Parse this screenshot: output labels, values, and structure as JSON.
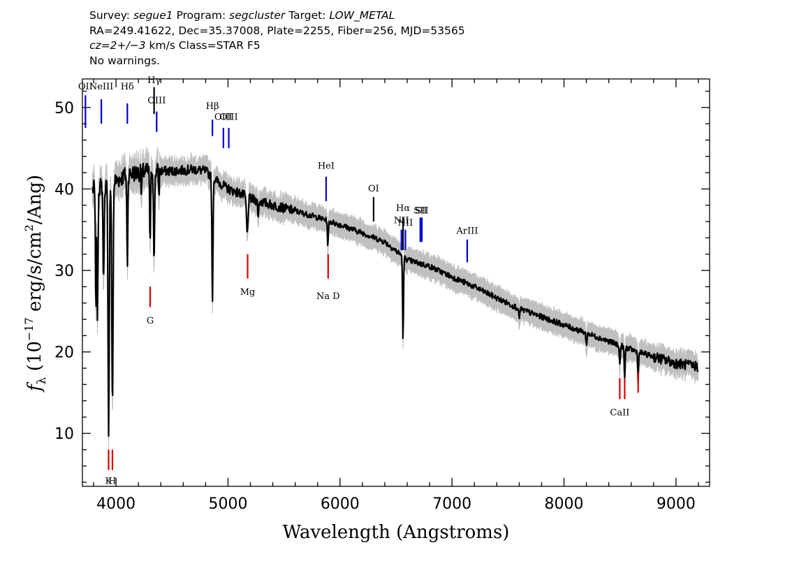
{
  "header": {
    "survey_label": "Survey:",
    "survey": "segue1",
    "program_label": "Program:",
    "program": "segcluster",
    "target_label": "Target:",
    "target": "LOW_METAL",
    "coords": "RA=249.41622, Dec=35.37008, Plate=2255, Fiber=256, MJD=53565",
    "cz": "cz=2+/−3",
    "cz_units_class": "km/s Class=STAR F5",
    "warnings": "No warnings."
  },
  "chart_data": {
    "type": "line",
    "xlabel": "Wavelength (Angstroms)",
    "ylabel_prefix": "f",
    "ylabel_sub": "λ",
    "ylabel_main": " (10",
    "ylabel_exp": "−17",
    "ylabel_units": " erg/s/cm",
    "ylabel_sq": "2",
    "ylabel_end": "/Ang)",
    "xlim": [
      3700,
      9300
    ],
    "ylim": [
      3.5,
      53.5
    ],
    "xticks": [
      4000,
      5000,
      6000,
      7000,
      8000,
      9000
    ],
    "yticks": [
      10,
      20,
      30,
      40,
      50
    ],
    "colors": {
      "spectrum": "#000000",
      "error_band": "#c0c0c0",
      "emission": "#0000cc",
      "absorption": "#dd0000",
      "other": "#000000"
    },
    "continuum": [
      [
        3800,
        40.0
      ],
      [
        3900,
        40.5
      ],
      [
        4000,
        41.0
      ],
      [
        4100,
        41.8
      ],
      [
        4200,
        42.0
      ],
      [
        4300,
        42.2
      ],
      [
        4400,
        42.2
      ],
      [
        4500,
        42.2
      ],
      [
        4600,
        42.3
      ],
      [
        4700,
        42.4
      ],
      [
        4800,
        42.2
      ],
      [
        4900,
        41.0
      ],
      [
        5000,
        40.0
      ],
      [
        5100,
        39.5
      ],
      [
        5200,
        38.8
      ],
      [
        5400,
        38.0
      ],
      [
        5600,
        37.3
      ],
      [
        5800,
        36.5
      ],
      [
        6000,
        35.6
      ],
      [
        6200,
        34.6
      ],
      [
        6400,
        33.5
      ],
      [
        6600,
        31.3
      ],
      [
        6800,
        30.5
      ],
      [
        7000,
        29.2
      ],
      [
        7200,
        28.0
      ],
      [
        7400,
        26.6
      ],
      [
        7600,
        25.3
      ],
      [
        7800,
        24.3
      ],
      [
        8000,
        23.3
      ],
      [
        8200,
        22.3
      ],
      [
        8400,
        21.3
      ],
      [
        8600,
        20.3
      ],
      [
        8800,
        19.4
      ],
      [
        9000,
        18.6
      ],
      [
        9200,
        18.2
      ]
    ],
    "absorption_features": [
      [
        3820,
        15.0,
        6
      ],
      [
        3835,
        16.0,
        6
      ],
      [
        3889,
        12.0,
        7
      ],
      [
        3934,
        30.0,
        8
      ],
      [
        3968,
        28.0,
        8
      ],
      [
        4101,
        11.0,
        6
      ],
      [
        4227,
        3.0,
        5
      ],
      [
        4305,
        9.0,
        6
      ],
      [
        4340,
        12.0,
        6
      ],
      [
        4383,
        3.0,
        5
      ],
      [
        4861,
        15.0,
        7
      ],
      [
        5172,
        4.5,
        10
      ],
      [
        5270,
        2.0,
        6
      ],
      [
        5892,
        3.0,
        6
      ],
      [
        6563,
        10.0,
        6
      ],
      [
        8498,
        2.5,
        6
      ],
      [
        8542,
        4.0,
        6
      ],
      [
        8662,
        3.5,
        6
      ],
      [
        8200,
        1.5,
        6
      ],
      [
        7600,
        1.0,
        8
      ]
    ],
    "emission_lines": [
      {
        "label": "OII",
        "wave": 3727,
        "y1": 47.5,
        "y2": 51.5,
        "label_y": 52.2
      },
      {
        "label": "NeIII",
        "wave": 3869,
        "y1": 48.0,
        "y2": 51.0,
        "label_y": 52.2
      },
      {
        "label": "Hδ",
        "wave": 4101,
        "y1": 48.0,
        "y2": 50.5,
        "label_y": 52.2
      },
      {
        "label": "OIII",
        "wave": 4363,
        "y1": 47.0,
        "y2": 49.5,
        "label_y": 50.5
      },
      {
        "label": "Hβ",
        "wave": 4861,
        "y1": 46.5,
        "y2": 48.5,
        "label_y": 49.8
      },
      {
        "label": "OIII",
        "wave": 4959,
        "y1": 45.0,
        "y2": 47.5,
        "label_y": 48.5
      },
      {
        "label": "OIII",
        "wave": 5007,
        "y1": 45.0,
        "y2": 47.5,
        "label_y": 48.5
      },
      {
        "label": "HeI",
        "wave": 5876,
        "y1": 38.5,
        "y2": 41.5,
        "label_y": 42.5
      },
      {
        "label": "NII",
        "wave": 6548,
        "y1": 32.5,
        "y2": 35.0,
        "label_y": 35.8
      },
      {
        "label": "NII",
        "wave": 6584,
        "y1": 32.5,
        "y2": 35.0,
        "label_y": 35.5
      },
      {
        "label": "SII",
        "wave": 6717,
        "y1": 33.5,
        "y2": 36.5,
        "label_y": 37.0
      },
      {
        "label": "SII",
        "wave": 6731,
        "y1": 33.5,
        "y2": 36.5,
        "label_y": 37.0
      },
      {
        "label": "ArIII",
        "wave": 7136,
        "y1": 31.0,
        "y2": 33.8,
        "label_y": 34.5
      }
    ],
    "other_lines": [
      {
        "label": "Hγ",
        "wave": 4340,
        "y1": 49.2,
        "y2": 52.5,
        "label_y": 53.0
      },
      {
        "label": "OI",
        "wave": 6300,
        "y1": 36.0,
        "y2": 39.0,
        "label_y": 39.7
      },
      {
        "label": "Hα",
        "wave": 6563,
        "y1": 32.5,
        "y2": 36.5,
        "label_y": 37.3
      }
    ],
    "absorption_lines": [
      {
        "label": "K",
        "wave": 3934,
        "y1": 5.5,
        "y2": 8.0,
        "label_y": 3.8
      },
      {
        "label": "H",
        "wave": 3968,
        "y1": 5.5,
        "y2": 8.0,
        "label_y": 3.8
      },
      {
        "label": "G",
        "wave": 4305,
        "y1": 25.5,
        "y2": 28.0,
        "label_y": 23.5
      },
      {
        "label": "Mg",
        "wave": 5175,
        "y1": 29.0,
        "y2": 32.0,
        "label_y": 27.0
      },
      {
        "label": "Na D",
        "wave": 5894,
        "y1": 29.0,
        "y2": 32.0,
        "label_y": 26.5
      },
      {
        "label": "CaII",
        "wave": 8498,
        "y1": 14.2,
        "y2": 16.8,
        "label_y": 12.2
      },
      {
        "label": "",
        "wave": 8542,
        "y1": 14.2,
        "y2": 16.8,
        "label_y": 12.2
      },
      {
        "label": "",
        "wave": 8662,
        "y1": 15.0,
        "y2": 17.6,
        "label_y": 12.2
      }
    ]
  }
}
